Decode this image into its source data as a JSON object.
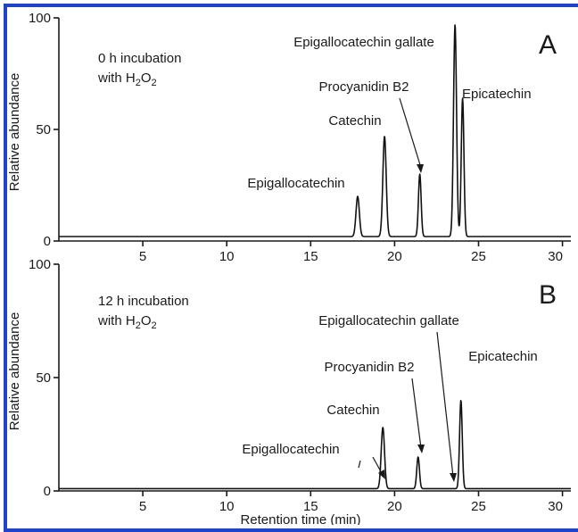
{
  "chart_data": [
    {
      "type": "line",
      "panel": "A",
      "note_lines": [
        "0 h incubation",
        "with H",
        "2",
        "O",
        "2"
      ],
      "ylabel": "Relative abundance",
      "xlabel": "",
      "xlim": [
        0,
        30.5
      ],
      "ylim": [
        0,
        100
      ],
      "x_ticks": [
        "5",
        "10",
        "15",
        "20",
        "25",
        "30"
      ],
      "y_ticks": [
        "0",
        "50",
        "100"
      ],
      "baseline": 2,
      "series": [
        {
          "peaks": [
            {
              "x": 17.8,
              "y": 20,
              "width": 0.1,
              "label": "Epigallocatechin"
            },
            {
              "x": 19.4,
              "y": 47,
              "width": 0.1,
              "label": "Catechin"
            },
            {
              "x": 21.5,
              "y": 30,
              "width": 0.08,
              "label": "Procyanidin B2"
            },
            {
              "x": 23.6,
              "y": 97,
              "width": 0.09,
              "label": "Epigallocatechin gallate"
            },
            {
              "x": 24.05,
              "y": 64,
              "width": 0.08,
              "label": "Epicatechin"
            }
          ]
        }
      ]
    },
    {
      "type": "line",
      "panel": "B",
      "note_lines": [
        "12 h incubation",
        "with H",
        "2",
        "O",
        "2"
      ],
      "ylabel": "Relative abundance",
      "xlabel": "Retention time (min)",
      "xlim": [
        0,
        30.5
      ],
      "ylim": [
        0,
        100
      ],
      "x_ticks": [
        "5",
        "10",
        "15",
        "20",
        "25",
        "30"
      ],
      "y_ticks": [
        "0",
        "50",
        "100"
      ],
      "baseline": 1,
      "series": [
        {
          "peaks": [
            {
              "x": 17.8,
              "y": 0,
              "width": 0.1,
              "label": "Epigallocatechin"
            },
            {
              "x": 19.3,
              "y": 28,
              "width": 0.1,
              "label": "Catechin"
            },
            {
              "x": 21.4,
              "y": 15,
              "width": 0.08,
              "label": "Procyanidin B2"
            },
            {
              "x": 23.5,
              "y": 0,
              "width": 0.09,
              "label": "Epigallocatechin gallate"
            },
            {
              "x": 23.95,
              "y": 40,
              "width": 0.08,
              "label": "Epicatechin"
            }
          ]
        }
      ]
    }
  ]
}
